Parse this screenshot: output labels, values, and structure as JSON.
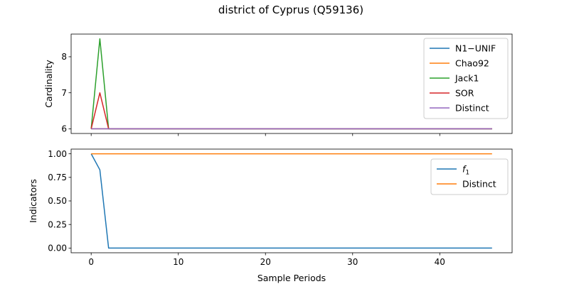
{
  "figure": {
    "suptitle": "district of Cyprus (Q59136)"
  },
  "chart_data": [
    {
      "type": "line",
      "ylabel": "Cardinality",
      "xlabel": "",
      "xlim": [
        -2.3,
        48.3
      ],
      "ylim": [
        5.87,
        8.63
      ],
      "xticks": [
        0,
        10,
        20,
        30,
        40
      ],
      "yticks": [
        6,
        7,
        8
      ],
      "ytick_labels": [
        "6",
        "7",
        "8"
      ],
      "grid": false,
      "legend_position": "top-right",
      "series": [
        {
          "name": "N1−UNIF",
          "color": "#1f77b4",
          "points": [
            [
              0,
              6
            ],
            [
              46,
              6
            ]
          ]
        },
        {
          "name": "Chao92",
          "color": "#ff7f0e",
          "points": [
            [
              0,
              6
            ],
            [
              46,
              6
            ]
          ]
        },
        {
          "name": "Jack1",
          "color": "#2ca02c",
          "points": [
            [
              0,
              6
            ],
            [
              1,
              8.5
            ],
            [
              2,
              6
            ],
            [
              46,
              6
            ]
          ]
        },
        {
          "name": "SOR",
          "color": "#d62728",
          "points": [
            [
              0,
              6
            ],
            [
              1,
              7
            ],
            [
              2,
              6
            ],
            [
              46,
              6
            ]
          ]
        },
        {
          "name": "Distinct",
          "color": "#9467bd",
          "points": [
            [
              0,
              6
            ],
            [
              46,
              6
            ]
          ]
        }
      ]
    },
    {
      "type": "line",
      "ylabel": "Indicators",
      "xlabel": "Sample Periods",
      "xlim": [
        -2.3,
        48.3
      ],
      "ylim": [
        -0.05,
        1.05
      ],
      "xticks": [
        0,
        10,
        20,
        30,
        40
      ],
      "xtick_labels": [
        "0",
        "10",
        "20",
        "30",
        "40"
      ],
      "yticks": [
        0,
        0.25,
        0.5,
        0.75,
        1.0
      ],
      "ytick_labels": [
        "0.00",
        "0.25",
        "0.50",
        "0.75",
        "1.00"
      ],
      "grid": false,
      "legend_position": "top-right",
      "series": [
        {
          "name": "f",
          "name_subscript": "1",
          "color": "#1f77b4",
          "points": [
            [
              0,
              1.0
            ],
            [
              1,
              0.83
            ],
            [
              2,
              0.0
            ],
            [
              46,
              0.0
            ]
          ]
        },
        {
          "name": "Distinct",
          "color": "#ff7f0e",
          "points": [
            [
              0,
              1.0
            ],
            [
              46,
              1.0
            ]
          ]
        }
      ]
    }
  ]
}
